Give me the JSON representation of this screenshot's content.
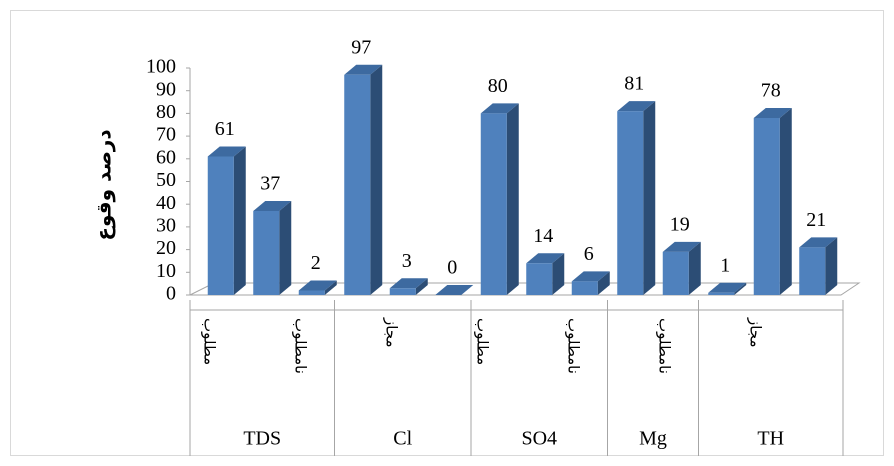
{
  "chart_data": {
    "type": "bar3d",
    "ylabel": "درصد وقوع",
    "groups": [
      {
        "label": "TDS",
        "categories": [
          "مطلوب",
          null,
          "نامطلوب"
        ]
      },
      {
        "label": "Cl",
        "categories": [
          null,
          "مجاز",
          null
        ]
      },
      {
        "label": "SO4",
        "categories": [
          "مطلوب",
          null,
          "نامطلوب"
        ]
      },
      {
        "label": "Mg",
        "categories": [
          null,
          "نامطلوب"
        ]
      },
      {
        "label": "TH",
        "categories": [
          null,
          "مجاز",
          null
        ]
      }
    ],
    "values": [
      61,
      37,
      2,
      97,
      3,
      0,
      80,
      14,
      6,
      81,
      19,
      1,
      78,
      21
    ],
    "color": "#4f81bd",
    "ylim": [
      0,
      100
    ],
    "yticks": [
      0,
      10,
      20,
      30,
      40,
      50,
      60,
      70,
      80,
      90,
      100
    ]
  }
}
